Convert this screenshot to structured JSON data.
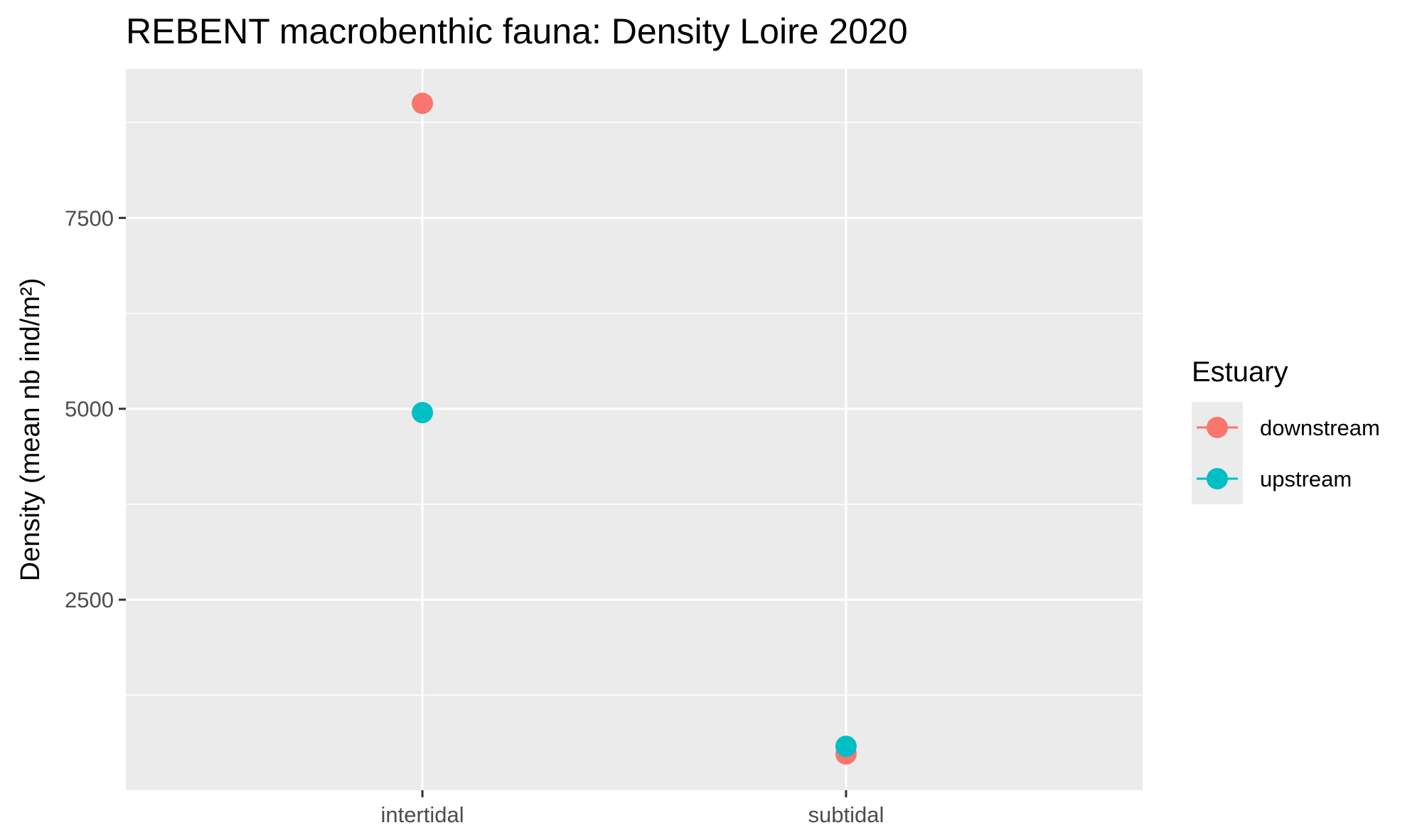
{
  "chart_data": {
    "type": "scatter",
    "title": "REBENT macrobenthic fauna: Density Loire 2020",
    "xlabel": "",
    "ylabel": "Density (mean nb ind/m²)",
    "categories": [
      "intertidal",
      "subtidal"
    ],
    "yticks": [
      2500,
      5000,
      7500
    ],
    "ylim": [
      5,
      9450
    ],
    "grid": true,
    "legend": {
      "title": "Estuary",
      "position": "right"
    },
    "series": [
      {
        "name": "downstream",
        "color": "#F8766D",
        "values": [
          9000,
          480
        ]
      },
      {
        "name": "upstream",
        "color": "#00BFC4",
        "values": [
          4950,
          580
        ]
      }
    ]
  },
  "colors": {
    "panel_background": "#EBEBEB",
    "grid_line": "#FFFFFF",
    "tick_mark": "#333333"
  }
}
